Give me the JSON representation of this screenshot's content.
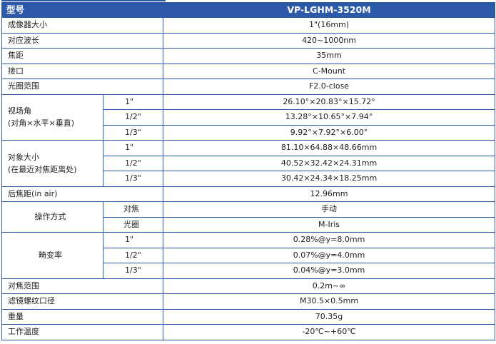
{
  "header": {
    "label": "型号",
    "value": "VP-LGHM-3520M"
  },
  "rows": {
    "sensor": {
      "label": "成像器大小",
      "value": "1\"(16mm)"
    },
    "wavelength": {
      "label": "对应波长",
      "value": "420~1000nm"
    },
    "focal": {
      "label": "焦距",
      "value": "35mm"
    },
    "mount": {
      "label": "接口",
      "value": "C-Mount"
    },
    "aperture": {
      "label": "光圈范围",
      "value": "F2.0-close"
    },
    "fov": {
      "label_line1": "视场角",
      "label_line2": "(对角×水平×垂直)",
      "items": [
        {
          "size": "1\"",
          "value": "26.10°×20.83°×15.72°"
        },
        {
          "size": "1/2\"",
          "value": "13.28°×10.65°×7.94°"
        },
        {
          "size": "1/3\"",
          "value": "9.92°×7.92°×6.00°"
        }
      ]
    },
    "object": {
      "label_line1": "对象大小",
      "label_line2": "(在最近对焦距离处)",
      "items": [
        {
          "size": "1\"",
          "value": "81.10×64.88×48.66mm"
        },
        {
          "size": "1/2\"",
          "value": "40.52×32.42×24.31mm"
        },
        {
          "size": "1/3\"",
          "value": "30.42×24.34×18.25mm"
        }
      ]
    },
    "back_focal": {
      "label": "后焦距(in air)",
      "value": "12.96mm"
    },
    "operation": {
      "label": "操作方式",
      "items": [
        {
          "sub": "对焦",
          "value": "手动"
        },
        {
          "sub": "光圈",
          "value": "M-Iris"
        }
      ]
    },
    "distortion": {
      "label": "畸变率",
      "items": [
        {
          "size": "1\"",
          "value": "0.28%@y=8.0mm"
        },
        {
          "size": "1/2\"",
          "value": "0.07%@y=4.0mm"
        },
        {
          "size": "1/3\"",
          "value": "0.04%@y=3.0mm"
        }
      ]
    },
    "focus_range": {
      "label": "对焦范围",
      "value": "0.2m~∞"
    },
    "filter": {
      "label": "滤镜螺纹口径",
      "value": "M30.5×0.5mm"
    },
    "weight": {
      "label": "重量",
      "value": "70.35g"
    },
    "temperature": {
      "label": "工作温度",
      "value": "-20℃~+60℃"
    }
  },
  "colors": {
    "accent": "#2d5aa8",
    "header_text": "#ffffff",
    "body_text": "#222222"
  }
}
